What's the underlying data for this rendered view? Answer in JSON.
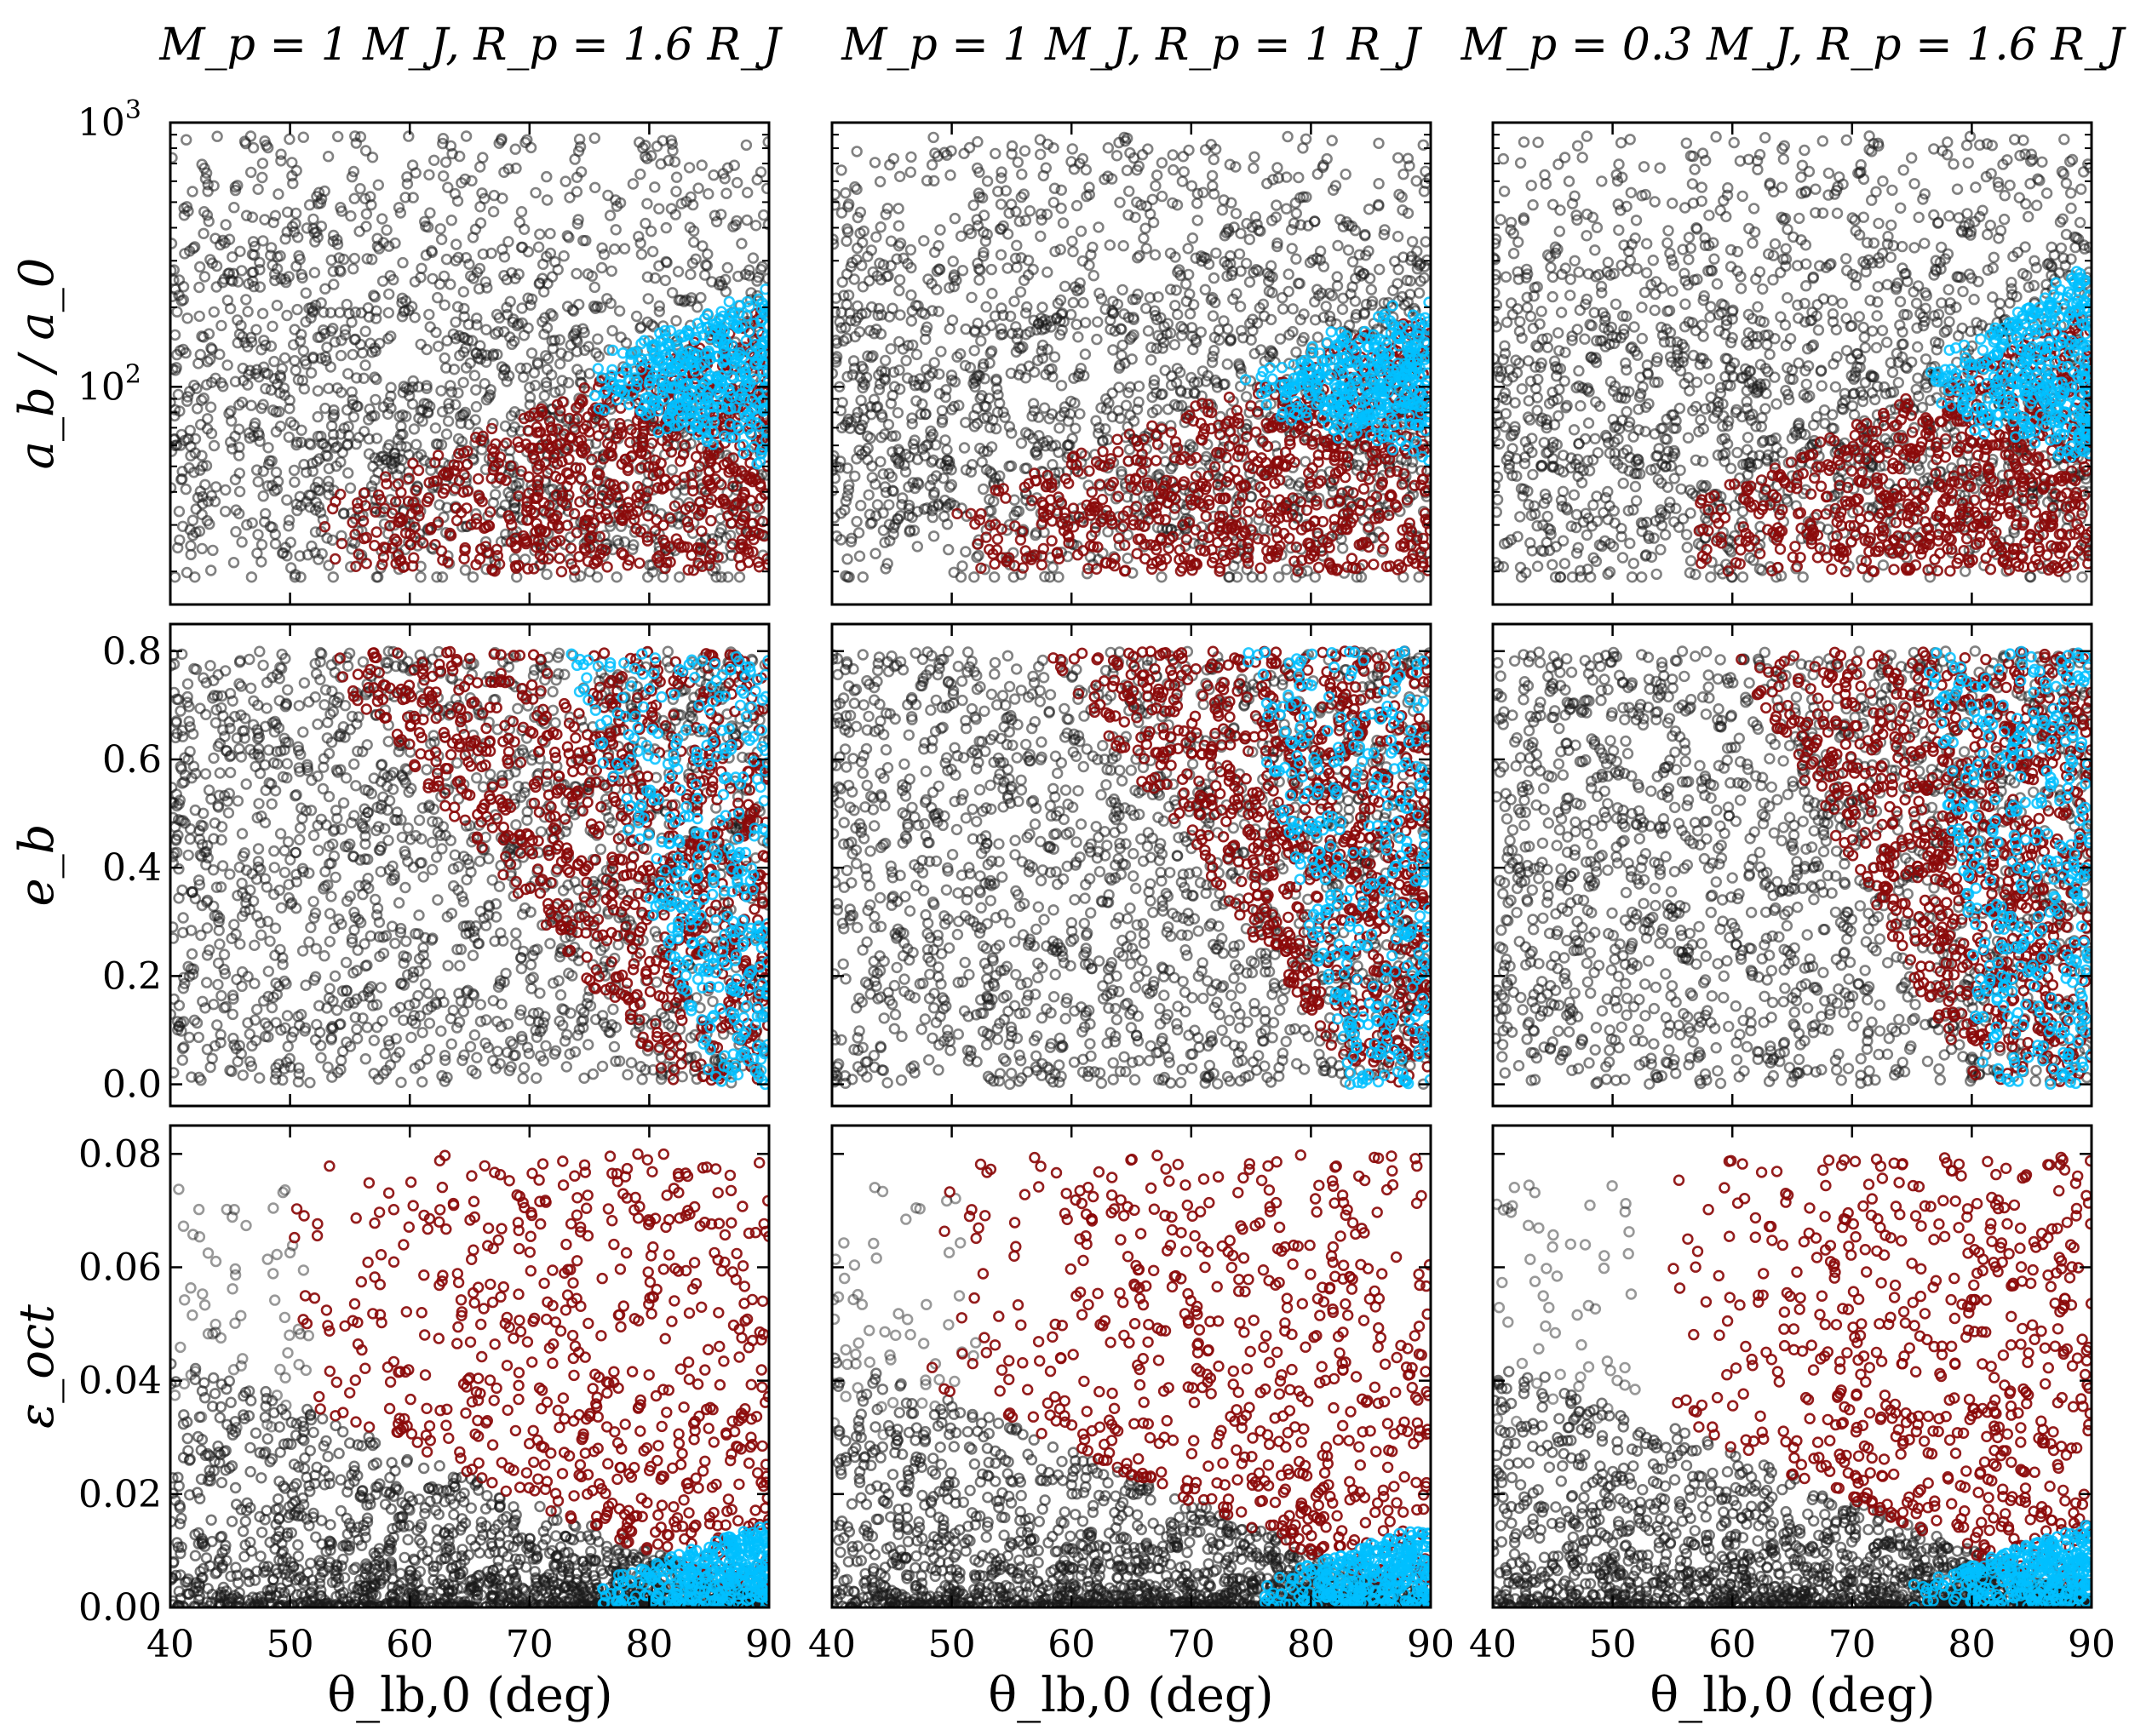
{
  "figure": {
    "column_titles": [
      "M_p = 1 M_J,  R_p = 1.6 R_J",
      "M_p = 1 M_J,  R_p = 1 R_J",
      "M_p = 0.3 M_J,  R_p = 1.6 R_J"
    ],
    "row_ylabels": [
      "a_b / a_0",
      "e_b",
      "ε_oct"
    ],
    "xlabel": "θ_lb,0 (deg)",
    "colors": {
      "background_points": "#1a1a1a",
      "red_points": "#8b0a0a",
      "cyan_points": "#00bfff",
      "axes": "#000000"
    }
  },
  "chart_data": [
    {
      "type": "scatter",
      "panel": "row1-col1",
      "title": "M_p = 1 M_J,  R_p = 1.6 R_J",
      "xlabel": "",
      "ylabel": "a_b / a_0",
      "xlim": [
        40,
        90
      ],
      "ylim": [
        15,
        1000
      ],
      "yscale": "log",
      "xticks": [
        40,
        50,
        60,
        70,
        80,
        90
      ],
      "yticks": [
        100,
        1000
      ],
      "ytick_labels": [
        "10^2",
        "10^3"
      ],
      "series": [
        {
          "name": "background",
          "color": "#1a1a1a",
          "count": 1600,
          "region": "x 40–90, y 18–900 (dense 25–400)"
        },
        {
          "name": "red",
          "color": "#8b0a0a",
          "count": 700,
          "region": "onset θ≈52°, y 20–100 rising toward θ=90°"
        },
        {
          "name": "cyan",
          "color": "#00bfff",
          "count": 380,
          "region": "θ 74–90°, y 60–230"
        }
      ]
    },
    {
      "type": "scatter",
      "panel": "row1-col2",
      "title": "M_p = 1 M_J,  R_p = 1 R_J",
      "xlabel": "",
      "ylabel": "",
      "xlim": [
        40,
        90
      ],
      "ylim": [
        15,
        1000
      ],
      "yscale": "log",
      "xticks": [
        40,
        50,
        60,
        70,
        80,
        90
      ],
      "yticks": [
        100,
        1000
      ],
      "series": [
        {
          "name": "background",
          "color": "#1a1a1a",
          "count": 1600,
          "region": "x 40–90, y 18–900"
        },
        {
          "name": "red",
          "color": "#8b0a0a",
          "count": 700,
          "region": "onset θ≈50°, y 20–100"
        },
        {
          "name": "cyan",
          "color": "#00bfff",
          "count": 380,
          "region": "θ 74–90°, y 60–200"
        }
      ]
    },
    {
      "type": "scatter",
      "panel": "row1-col3",
      "title": "M_p = 0.3 M_J,  R_p = 1.6 R_J",
      "xlabel": "",
      "ylabel": "",
      "xlim": [
        40,
        90
      ],
      "ylim": [
        15,
        1000
      ],
      "yscale": "log",
      "xticks": [
        40,
        50,
        60,
        70,
        80,
        90
      ],
      "yticks": [
        100,
        1000
      ],
      "series": [
        {
          "name": "background",
          "color": "#1a1a1a",
          "count": 1600,
          "region": "x 40–90, y 18–900"
        },
        {
          "name": "red",
          "color": "#8b0a0a",
          "count": 700,
          "region": "onset θ≈55°, y 20–130"
        },
        {
          "name": "cyan",
          "color": "#00bfff",
          "count": 380,
          "region": "θ 76–90°, y 80–290"
        }
      ]
    },
    {
      "type": "scatter",
      "panel": "row2-col1",
      "xlabel": "",
      "ylabel": "e_b",
      "xlim": [
        40,
        90
      ],
      "ylim": [
        -0.04,
        0.85
      ],
      "xticks": [
        40,
        50,
        60,
        70,
        80,
        90
      ],
      "yticks": [
        0.0,
        0.2,
        0.4,
        0.6,
        0.8
      ],
      "ytick_labels": [
        "0.0",
        "0.2",
        "0.4",
        "0.6",
        "0.8"
      ],
      "series": [
        {
          "name": "background",
          "color": "#1a1a1a",
          "count": 1600,
          "region": "x 40–90, y 0–0.8 uniform"
        },
        {
          "name": "red",
          "color": "#8b0a0a",
          "count": 800,
          "region": "boundary θ≈82° at e=0 to θ≈52° at e=0.8"
        },
        {
          "name": "cyan",
          "color": "#00bfff",
          "count": 350,
          "region": "θ≈85–90° at e=0, θ≈73–90° at e=0.8"
        }
      ]
    },
    {
      "type": "scatter",
      "panel": "row2-col2",
      "xlabel": "",
      "ylabel": "",
      "xlim": [
        40,
        90
      ],
      "ylim": [
        -0.04,
        0.85
      ],
      "xticks": [
        40,
        50,
        60,
        70,
        80,
        90
      ],
      "yticks": [
        0.0,
        0.2,
        0.4,
        0.6,
        0.8
      ],
      "series": [
        {
          "name": "background",
          "color": "#1a1a1a",
          "count": 1600,
          "region": "x 40–90, y 0–0.8"
        },
        {
          "name": "red",
          "color": "#8b0a0a",
          "count": 800,
          "region": "boundary θ≈84° at e=0 to θ≈58° at e=0.8"
        },
        {
          "name": "cyan",
          "color": "#00bfff",
          "count": 350,
          "region": "θ≈83–89° at e=0, θ≈74–90° at e=0.8"
        }
      ]
    },
    {
      "type": "scatter",
      "panel": "row2-col3",
      "xlabel": "",
      "ylabel": "",
      "xlim": [
        40,
        90
      ],
      "ylim": [
        -0.04,
        0.85
      ],
      "xticks": [
        40,
        50,
        60,
        70,
        80,
        90
      ],
      "yticks": [
        0.0,
        0.2,
        0.4,
        0.6,
        0.8
      ],
      "series": [
        {
          "name": "background",
          "color": "#1a1a1a",
          "count": 1600,
          "region": "x 40–90, y 0–0.8"
        },
        {
          "name": "red",
          "color": "#8b0a0a",
          "count": 800,
          "region": "boundary θ≈80° at e=0 to θ≈60° at e=0.8"
        },
        {
          "name": "cyan",
          "color": "#00bfff",
          "count": 350,
          "region": "θ≈81–90° at e=0, θ≈76–90° at e=0.8"
        }
      ]
    },
    {
      "type": "scatter",
      "panel": "row3-col1",
      "xlabel": "θ_lb,0 (deg)",
      "ylabel": "ε_oct",
      "xlim": [
        40,
        90
      ],
      "ylim": [
        0,
        0.085
      ],
      "xticks": [
        40,
        50,
        60,
        70,
        80,
        90
      ],
      "xtick_labels": [
        "40",
        "50",
        "60",
        "70",
        "80",
        "90"
      ],
      "yticks": [
        0.0,
        0.02,
        0.04,
        0.06,
        0.08
      ],
      "ytick_labels": [
        "0.00",
        "0.02",
        "0.04",
        "0.06",
        "0.08"
      ],
      "series": [
        {
          "name": "background",
          "color": "#1a1a1a",
          "count": 1500,
          "region": "dense near 0, upper envelope ≈0.045 at 40° falling to 0 at 90°"
        },
        {
          "name": "red",
          "color": "#8b0a0a",
          "count": 600,
          "region": "θ 50–90°, y 0.01–0.082"
        },
        {
          "name": "cyan",
          "color": "#00bfff",
          "count": 320,
          "region": "θ 75–90°, y 0–0.015"
        }
      ]
    },
    {
      "type": "scatter",
      "panel": "row3-col2",
      "xlabel": "θ_lb,0 (deg)",
      "ylabel": "",
      "xlim": [
        40,
        90
      ],
      "ylim": [
        0,
        0.085
      ],
      "xticks": [
        40,
        50,
        60,
        70,
        80,
        90
      ],
      "xtick_labels": [
        "40",
        "50",
        "60",
        "70",
        "80",
        "90"
      ],
      "yticks": [
        0.0,
        0.02,
        0.04,
        0.06,
        0.08
      ],
      "series": [
        {
          "name": "background",
          "color": "#1a1a1a",
          "count": 1500,
          "region": "dense near 0, upper envelope ≈0.045 at 40°"
        },
        {
          "name": "red",
          "color": "#8b0a0a",
          "count": 600,
          "region": "θ 48–90°, y 0.01–0.078"
        },
        {
          "name": "cyan",
          "color": "#00bfff",
          "count": 320,
          "region": "θ 76–90°, y 0–0.012"
        }
      ]
    },
    {
      "type": "scatter",
      "panel": "row3-col3",
      "xlabel": "θ_lb,0 (deg)",
      "ylabel": "",
      "xlim": [
        40,
        90
      ],
      "ylim": [
        0,
        0.085
      ],
      "xticks": [
        40,
        50,
        60,
        70,
        80,
        90
      ],
      "xtick_labels": [
        "40",
        "50",
        "60",
        "70",
        "80",
        "90"
      ],
      "yticks": [
        0.0,
        0.02,
        0.04,
        0.06,
        0.08
      ],
      "series": [
        {
          "name": "background",
          "color": "#1a1a1a",
          "count": 1500,
          "region": "dense near 0, upper envelope ≈0.045 at 40°"
        },
        {
          "name": "red",
          "color": "#8b0a0a",
          "count": 600,
          "region": "θ 52–90°, y 0.01–0.078"
        },
        {
          "name": "cyan",
          "color": "#00bfff",
          "count": 320,
          "region": "θ 76–90°, y 0–0.015"
        }
      ]
    }
  ]
}
